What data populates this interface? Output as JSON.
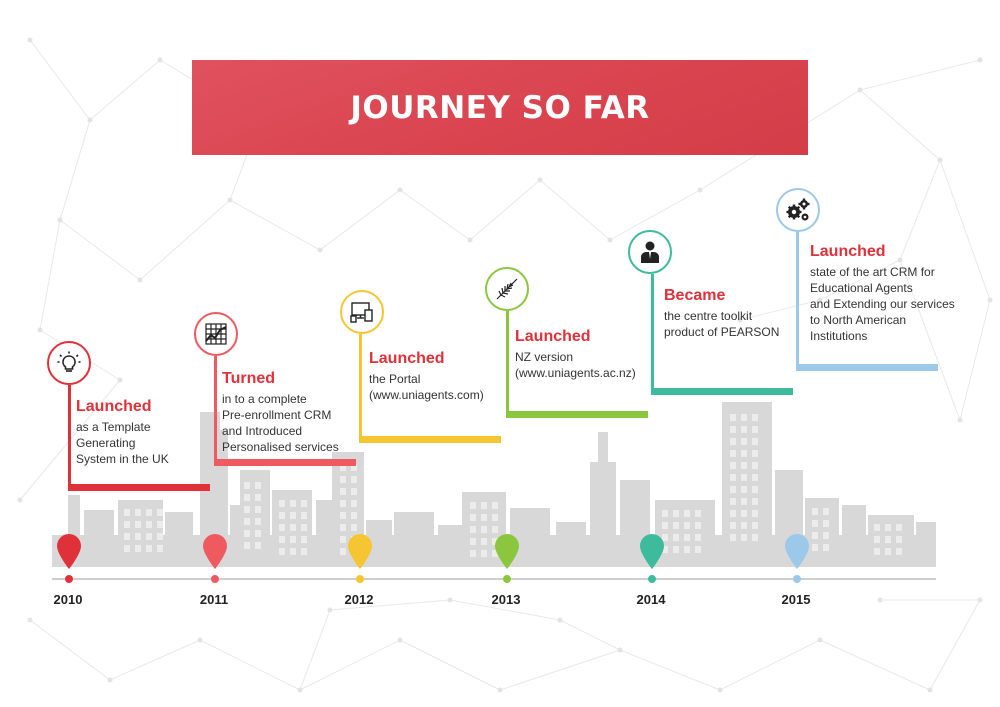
{
  "title": "JOURNEY SO FAR",
  "events": [
    {
      "year": "2010",
      "color": "#e0313a",
      "icon": "lightbulb-icon",
      "title": "Launched",
      "lines": [
        "as a Template",
        "Generating",
        "System in the UK"
      ]
    },
    {
      "year": "2011",
      "color": "#ef5a60",
      "icon": "line-chart-icon",
      "title": "Turned",
      "lines": [
        "in to a complete",
        "Pre-enrollment CRM",
        "and Introduced",
        "Personalised services"
      ]
    },
    {
      "year": "2012",
      "color": "#f6c532",
      "icon": "devices-icon",
      "title": "Launched",
      "lines": [
        "the Portal",
        "(www.uniagents.com)"
      ]
    },
    {
      "year": "2013",
      "color": "#8cc63f",
      "icon": "fern-icon",
      "title": "Launched",
      "lines": [
        "NZ version",
        "(www.uniagents.ac.nz)"
      ]
    },
    {
      "year": "2014",
      "color": "#3dbb9c",
      "icon": "businessman-icon",
      "title": "Became",
      "lines": [
        "the centre toolkit",
        "product of PEARSON"
      ]
    },
    {
      "year": "2015",
      "color": "#9cc8ea",
      "icon": "gears-icon",
      "title": "Launched",
      "lines": [
        "state of the art CRM for",
        "Educational Agents",
        "and Extending our services",
        "to North American",
        "Institutions"
      ]
    }
  ]
}
